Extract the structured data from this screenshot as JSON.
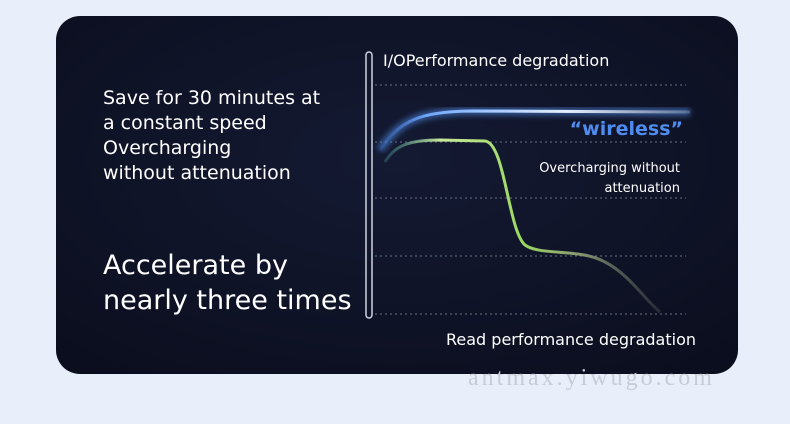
{
  "intro": {
    "lines": [
      "Save for 30 minutes at",
      "a constant speed",
      "Overcharging",
      "without attenuation"
    ]
  },
  "headline": {
    "lines": [
      "Accelerate by",
      "nearly three times"
    ]
  },
  "diagram": {
    "top_label": "I/OPerformance degradation",
    "wireless_label": "“wireless”",
    "overcharge_label": [
      "Overcharging without",
      "attenuation"
    ],
    "bottom_label": "Read performance degradation"
  },
  "watermark": "antmax.yiwugo.com"
}
